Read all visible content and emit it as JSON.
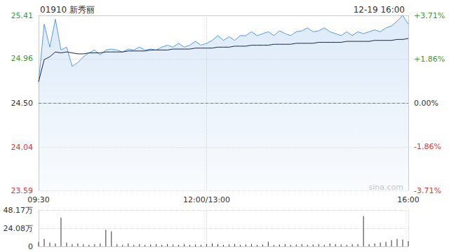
{
  "chart_data": [
    {
      "type": "line",
      "title": "01910 新秀丽",
      "subtitle": "12-19 16:00",
      "annotation": "sina.com",
      "x": [
        "09:30",
        null,
        null,
        null,
        null,
        null,
        null,
        null,
        null,
        null,
        null,
        null,
        null,
        null,
        null,
        null,
        null,
        null,
        null,
        null,
        null,
        null,
        null,
        null,
        null,
        null,
        null,
        null,
        null,
        null,
        "12:00/13:00",
        null,
        null,
        null,
        null,
        null,
        null,
        null,
        null,
        null,
        null,
        null,
        null,
        null,
        null,
        null,
        null,
        null,
        null,
        null,
        null,
        null,
        null,
        null,
        null,
        null,
        null,
        null,
        null,
        null,
        null,
        null,
        null,
        null,
        null,
        null,
        "16:00"
      ],
      "series": [
        {
          "color": "#5b9be0",
          "type": "area",
          "values": [
            24.72,
            25.32,
            25.08,
            25.37,
            25.05,
            25.08,
            24.88,
            24.92,
            24.98,
            25.02,
            25.05,
            25.0,
            25.05,
            25.06,
            25.05,
            25.03,
            25.06,
            25.05,
            25.08,
            25.05,
            25.06,
            25.05,
            25.08,
            25.1,
            25.08,
            25.12,
            25.08,
            25.1,
            25.14,
            25.1,
            25.12,
            25.15,
            25.2,
            25.15,
            25.19,
            25.15,
            25.2,
            25.2,
            25.24,
            25.2,
            25.22,
            25.24,
            25.2,
            25.25,
            25.22,
            25.2,
            25.24,
            25.25,
            25.28,
            25.24,
            25.25,
            25.28,
            25.24,
            25.22,
            25.2,
            25.24,
            25.2,
            25.24,
            25.22,
            25.24,
            25.26,
            25.24,
            25.28,
            25.3,
            25.35,
            25.41,
            25.32
          ]
        },
        {
          "color": "#1c2a3d",
          "type": "line",
          "values": [
            24.72,
            24.95,
            24.98,
            25.03,
            25.02,
            25.03,
            25.02,
            25.01,
            25.01,
            25.02,
            25.02,
            25.02,
            25.03,
            25.03,
            25.03,
            25.03,
            25.04,
            25.04,
            25.04,
            25.04,
            25.05,
            25.05,
            25.05,
            25.05,
            25.06,
            25.06,
            25.06,
            25.06,
            25.07,
            25.07,
            25.07,
            25.07,
            25.08,
            25.08,
            25.08,
            25.09,
            25.09,
            25.09,
            25.1,
            25.1,
            25.1,
            25.1,
            25.11,
            25.11,
            25.11,
            25.11,
            25.12,
            25.12,
            25.12,
            25.12,
            25.13,
            25.13,
            25.13,
            25.13,
            25.13,
            25.14,
            25.14,
            25.14,
            25.14,
            25.14,
            25.15,
            25.15,
            25.15,
            25.15,
            25.16,
            25.16,
            25.17
          ]
        }
      ],
      "baseline": {
        "value": 24.5,
        "color": "#e05a5a"
      },
      "ylim": [
        23.59,
        25.41
      ],
      "yticks": [
        25.41,
        24.96,
        {
          "value": 24.5,
          "label": "24.50"
        },
        24.04,
        23.59
      ],
      "y2lim": [
        -3.71,
        3.71
      ],
      "y2ticks": [
        {
          "value": 3.71,
          "label": "+3.71%"
        },
        {
          "value": 1.86,
          "label": "+1.86%"
        },
        {
          "value": 0,
          "label": "0.00%"
        },
        {
          "value": -1.86,
          "label": "-1.86%"
        },
        {
          "value": -3.71,
          "label": "-3.71%"
        }
      ],
      "grid": true
    },
    {
      "type": "bar",
      "x": [
        "09:30",
        null,
        null,
        null,
        null,
        null,
        null,
        null,
        null,
        null,
        null,
        null,
        null,
        null,
        null,
        null,
        null,
        null,
        null,
        null,
        null,
        null,
        null,
        null,
        null,
        null,
        null,
        null,
        null,
        null,
        "12:00/13:00",
        null,
        null,
        null,
        null,
        null,
        null,
        null,
        null,
        null,
        null,
        null,
        null,
        null,
        null,
        null,
        null,
        null,
        null,
        null,
        null,
        null,
        null,
        null,
        null,
        null,
        null,
        null,
        null,
        null,
        null,
        null,
        null,
        null,
        null,
        null,
        "16:00"
      ],
      "values": [
        60000,
        100000,
        50000,
        40000,
        380000,
        50000,
        30000,
        40000,
        30000,
        20000,
        30000,
        40000,
        220000,
        200000,
        30000,
        20000,
        40000,
        20000,
        30000,
        20000,
        25000,
        30000,
        20000,
        30000,
        25000,
        20000,
        30000,
        20000,
        25000,
        20000,
        30000,
        40000,
        30000,
        20000,
        25000,
        30000,
        20000,
        25000,
        30000,
        20000,
        25000,
        60000,
        20000,
        25000,
        30000,
        20000,
        25000,
        30000,
        20000,
        25000,
        30000,
        20000,
        40000,
        30000,
        25000,
        20000,
        30000,
        30000,
        400000,
        30000,
        40000,
        50000,
        60000,
        80000,
        100000,
        90000,
        70000
      ],
      "color": "#333333",
      "ylim": [
        0,
        481700
      ],
      "yticks": [
        0,
        {
          "value": 240800,
          "label": "24.08万"
        },
        {
          "value": 481700,
          "label": "48.17万"
        }
      ],
      "tick_labels": "y",
      "grid": true
    }
  ]
}
